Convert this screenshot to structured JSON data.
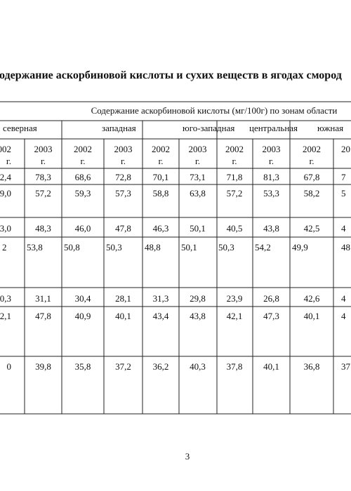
{
  "title": "одержание аскорбиновой кислоты и сухих веществ в ягодах смород",
  "table": {
    "header": "Содержание аскорбиновой кислоты (мг/100г) по зонам области",
    "zones": [
      "северная",
      "западная",
      "юго-западная",
      "центральная",
      "южная"
    ],
    "years": [
      [
        "002",
        "г."
      ],
      [
        "2003",
        "г."
      ],
      [
        "2002",
        "г."
      ],
      [
        "2003",
        "г."
      ],
      [
        "2002",
        "г."
      ],
      [
        "2003",
        "г."
      ],
      [
        "2002",
        "г."
      ],
      [
        "2003",
        "г."
      ],
      [
        "2002",
        "г."
      ],
      [
        "20"
      ]
    ],
    "rows": [
      [
        "2,4",
        "78,3",
        "68,6",
        "72,8",
        "70,1",
        "73,1",
        "71,8",
        "81,3",
        "67,8",
        "7"
      ],
      [
        "9,0",
        "57,2",
        "59,3",
        "57,3",
        "58,8",
        "63,8",
        "57,2",
        "53,3",
        "58,2",
        "5"
      ],
      [
        "3,0",
        "48,3",
        "46,0",
        "47,8",
        "46,3",
        "50,1",
        "40,5",
        "43,8",
        "42,5",
        "4"
      ],
      [
        "2",
        "53,8",
        "50,8",
        "50,3",
        "48,8",
        "50,1",
        "50,3",
        "54,2",
        "49,9",
        "48"
      ],
      [
        "0,3",
        "31,1",
        "30,4",
        "28,1",
        "31,3",
        "29,8",
        "23,9",
        "26,8",
        "42,6",
        "4"
      ],
      [
        "2,1",
        "47,8",
        "40,9",
        "40,1",
        "43,4",
        "43,8",
        "42,1",
        "47,3",
        "40,1",
        "4"
      ],
      [
        "0",
        "39,8",
        "35,8",
        "37,2",
        "36,2",
        "40,3",
        "37,8",
        "40,1",
        "36,8",
        "37"
      ]
    ]
  },
  "page_number": "3"
}
